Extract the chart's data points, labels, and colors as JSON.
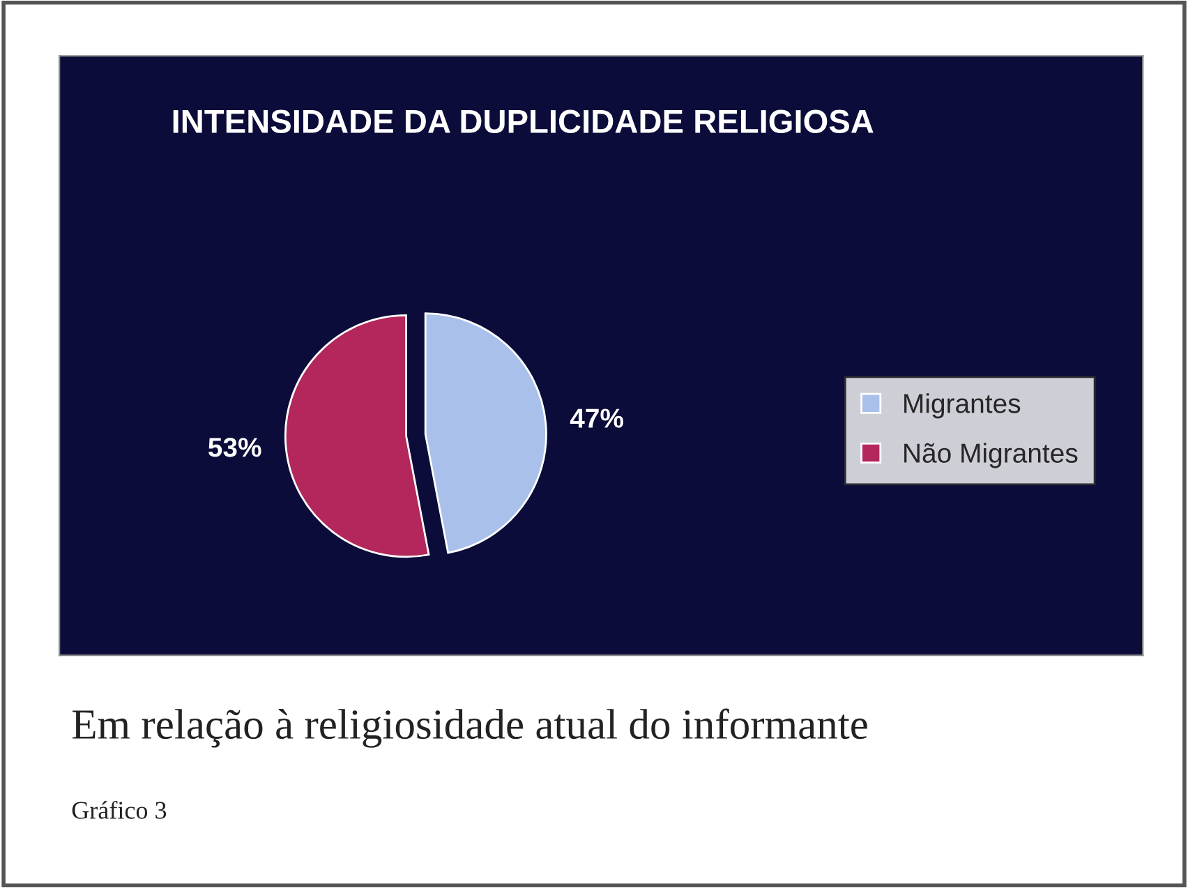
{
  "chart_data": {
    "type": "pie",
    "title": "INTENSIDADE DA DUPLICIDADE RELIGIOSA",
    "categories": [
      "Migrantes",
      "Não Migrantes"
    ],
    "values": [
      47,
      53
    ],
    "colors": [
      "#a9c1ea",
      "#b3275c"
    ],
    "value_labels": [
      "47%",
      "53%"
    ],
    "legend": "right",
    "annotations": [
      "Em relação à religiosidade atual do informante",
      "Gráfico 3"
    ]
  }
}
